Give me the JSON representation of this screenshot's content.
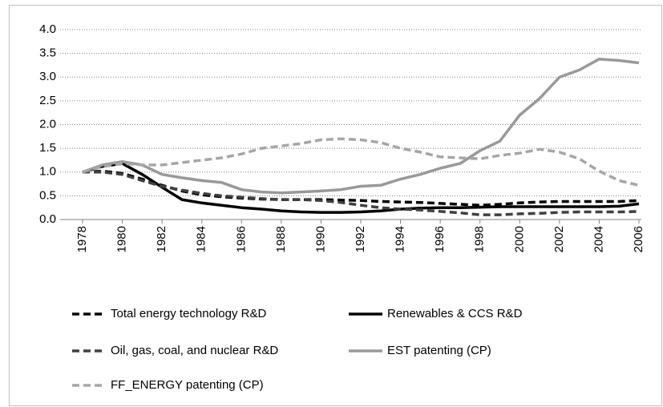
{
  "chart_data": {
    "type": "line",
    "x": [
      1978,
      1979,
      1980,
      1981,
      1982,
      1983,
      1984,
      1985,
      1986,
      1987,
      1988,
      1989,
      1990,
      1991,
      1992,
      1993,
      1994,
      1995,
      1996,
      1997,
      1998,
      1999,
      2000,
      2001,
      2002,
      2003,
      2004,
      2005,
      2006
    ],
    "xlim": [
      1978,
      2006
    ],
    "xticks": [
      1978,
      1980,
      1982,
      1984,
      1986,
      1988,
      1990,
      1992,
      1994,
      1996,
      1998,
      2000,
      2002,
      2004,
      2006
    ],
    "ylim": [
      0,
      4
    ],
    "yticks": [
      {
        "value": 0,
        "label": "0.0"
      },
      {
        "value": 0.5,
        "label": "0.5"
      },
      {
        "value": 1,
        "label": "1.0"
      },
      {
        "value": 1.5,
        "label": "1.5"
      },
      {
        "value": 2,
        "label": "2.0"
      },
      {
        "value": 2.5,
        "label": "2.5"
      },
      {
        "value": 3,
        "label": "3.0"
      },
      {
        "value": 3.5,
        "label": "3.5"
      },
      {
        "value": 4,
        "label": "4.0"
      }
    ],
    "grid": true,
    "series": [
      {
        "name": "Total energy technology R&D",
        "color": "#000000",
        "dashed": true,
        "values": [
          1.0,
          1.02,
          0.97,
          0.85,
          0.72,
          0.6,
          0.52,
          0.48,
          0.45,
          0.43,
          0.42,
          0.42,
          0.42,
          0.41,
          0.4,
          0.38,
          0.37,
          0.36,
          0.34,
          0.32,
          0.3,
          0.32,
          0.35,
          0.37,
          0.38,
          0.38,
          0.38,
          0.38,
          0.4
        ]
      },
      {
        "name": "Renewables & CCS R&D",
        "color": "#000000",
        "dashed": false,
        "values": [
          1.0,
          1.12,
          1.18,
          0.95,
          0.68,
          0.42,
          0.35,
          0.3,
          0.25,
          0.22,
          0.18,
          0.16,
          0.15,
          0.15,
          0.16,
          0.18,
          0.22,
          0.24,
          0.25,
          0.25,
          0.26,
          0.27,
          0.27,
          0.27,
          0.27,
          0.27,
          0.27,
          0.28,
          0.33
        ]
      },
      {
        "name": "Oil, gas, coal, and nuclear R&D",
        "color": "#404040",
        "dashed": true,
        "values": [
          1.0,
          1.0,
          0.95,
          0.82,
          0.7,
          0.62,
          0.55,
          0.5,
          0.47,
          0.44,
          0.42,
          0.42,
          0.4,
          0.36,
          0.3,
          0.25,
          0.22,
          0.2,
          0.17,
          0.14,
          0.1,
          0.1,
          0.12,
          0.13,
          0.15,
          0.16,
          0.16,
          0.16,
          0.17
        ]
      },
      {
        "name": "EST patenting (CP)",
        "color": "#999999",
        "dashed": false,
        "values": [
          1.0,
          1.15,
          1.22,
          1.15,
          0.95,
          0.88,
          0.82,
          0.78,
          0.63,
          0.58,
          0.56,
          0.58,
          0.6,
          0.63,
          0.7,
          0.72,
          0.85,
          0.95,
          1.08,
          1.18,
          1.45,
          1.65,
          2.2,
          2.55,
          3.0,
          3.15,
          3.38,
          3.35,
          3.3
        ]
      },
      {
        "name": "FF_ENERGY patenting (CP)",
        "color": "#a6a6a6",
        "dashed": true,
        "values": [
          1.0,
          1.12,
          1.18,
          1.15,
          1.15,
          1.2,
          1.25,
          1.3,
          1.38,
          1.5,
          1.55,
          1.6,
          1.68,
          1.7,
          1.68,
          1.62,
          1.5,
          1.42,
          1.32,
          1.3,
          1.28,
          1.35,
          1.4,
          1.48,
          1.42,
          1.28,
          1.02,
          0.82,
          0.72
        ]
      }
    ]
  }
}
